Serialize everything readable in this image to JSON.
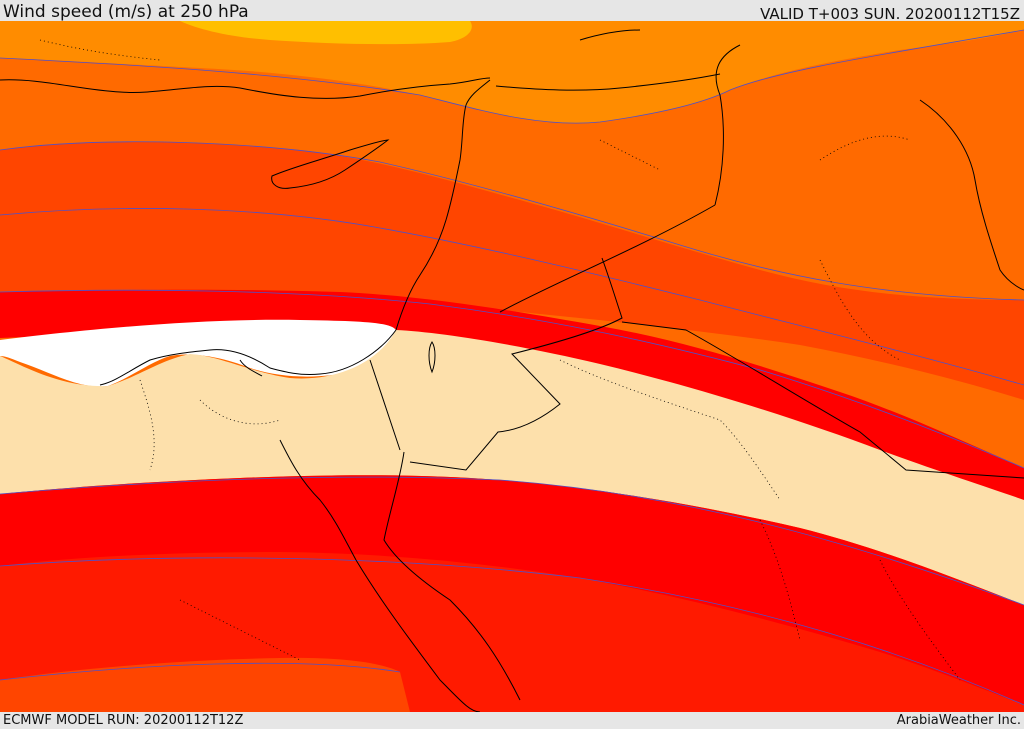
{
  "header": {
    "title": "Wind speed (m/s) at 250 hPa",
    "valid_time": "VALID T+003 SUN. 20200112T15Z"
  },
  "footer": {
    "model_run": "ECMWF MODEL RUN: 20200112T12Z",
    "credit": "ArabiaWeather Inc."
  },
  "map": {
    "colors": {
      "band_yellow": "#ffbf00",
      "band_light_orange": "#ff8c00",
      "band_orange": "#ff6a00",
      "band_red_orange": "#ff4500",
      "band_red": "#ff0000",
      "band_jet_red": "#ff1a00",
      "band_pale": "#fde0ab",
      "band_white": "#ffffff",
      "contour_line": "#5050c8",
      "coastline": "#000000"
    }
  }
}
